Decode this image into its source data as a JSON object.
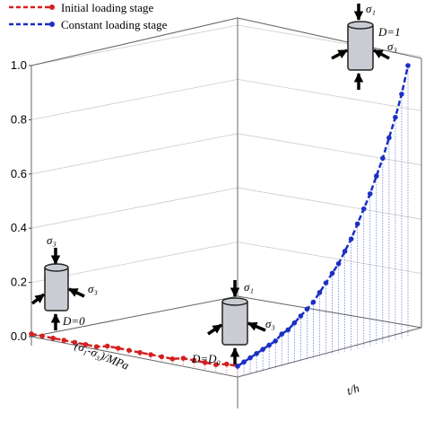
{
  "chart_data": {
    "type": "line",
    "series": [
      {
        "name": "Initial loading stage",
        "color": "#d42020",
        "values": [
          0.01,
          0.01,
          0.01,
          0.01,
          0.01,
          0.01,
          0.01,
          0.02,
          0.02,
          0.02,
          0.02,
          0.02,
          0.02,
          0.02,
          0.03,
          0.03,
          0.03,
          0.03,
          0.04,
          0.04
        ]
      },
      {
        "name": "Constant loading stage",
        "color": "#1a2fc4",
        "values": [
          0.04,
          0.05,
          0.06,
          0.07,
          0.08,
          0.09,
          0.1,
          0.12,
          0.13,
          0.15,
          0.17,
          0.19,
          0.21,
          0.24,
          0.27,
          0.3,
          0.33,
          0.37,
          0.41,
          0.46,
          0.51,
          0.56,
          0.62,
          0.68,
          0.75,
          0.82,
          0.9,
          1.0
        ]
      }
    ],
    "ylim": [
      0,
      1
    ],
    "yticks": [
      {
        "value": 0,
        "label": "0.0"
      },
      {
        "value": 0.2,
        "label": "0.2"
      },
      {
        "value": 0.4,
        "label": "0.4"
      },
      {
        "value": 0.6,
        "label": "0.6"
      },
      {
        "value": 0.8,
        "label": "0.8"
      },
      {
        "value": 1,
        "label": "1.0"
      }
    ],
    "xlabel": "(σ₁-σ₃)/MPa",
    "zlabel": "t/h",
    "annotations": {
      "top_s1": "σ₁",
      "top_s3": "σ₃",
      "top_d": "D=1",
      "left_s3a": "σ₃",
      "left_s3b": "σ₃",
      "left_d": "D=0",
      "mid_s1": "σ₁",
      "mid_s3": "σ₃",
      "mid_d": "D=D₀"
    },
    "grid": true
  }
}
